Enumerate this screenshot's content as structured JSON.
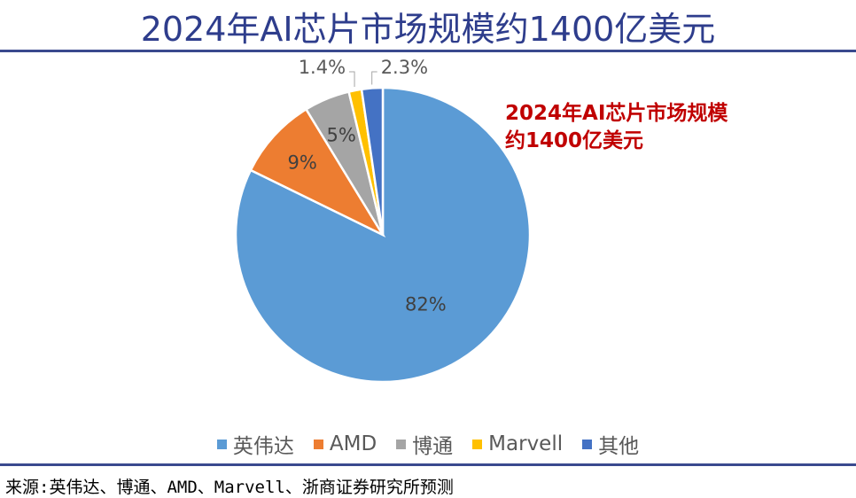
{
  "title": "2024年AI芯片市场规模约1400亿美元",
  "annotation": "2024年AI芯片市场规模约1400亿美元",
  "source": "来源:英伟达、博通、AMD、Marvell、浙商证券研究所预测",
  "chart_data": {
    "type": "pie",
    "title": "2024年AI芯片市场规模约1400亿美元",
    "start": "12 o'clock, clockwise",
    "legend_position": "bottom",
    "slices": [
      {
        "name": "英伟达",
        "value": 82,
        "label": "82%",
        "color": "#5B9BD5"
      },
      {
        "name": "AMD",
        "value": 9,
        "label": "9%",
        "color": "#ED7D31"
      },
      {
        "name": "博通",
        "value": 5,
        "label": "5%",
        "color": "#A5A5A5"
      },
      {
        "name": "Marvell",
        "value": 1.4,
        "label": "1.4%",
        "color": "#FFC000"
      },
      {
        "name": "其他",
        "value": 2.3,
        "label": "2.3%",
        "color": "#4472C4"
      }
    ]
  }
}
